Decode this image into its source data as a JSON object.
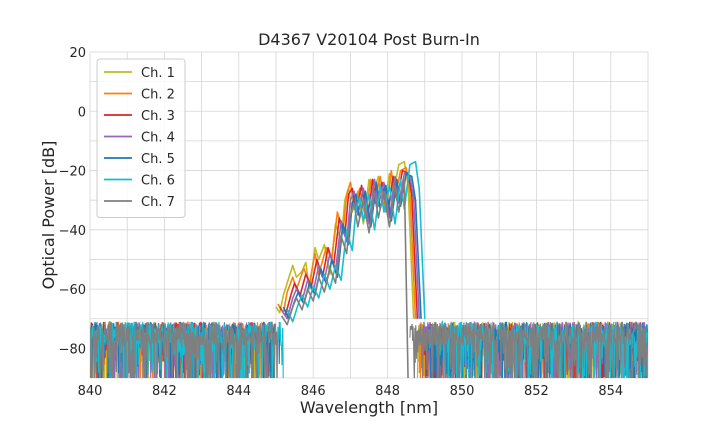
{
  "chart_data": {
    "type": "line",
    "title": "D4367 V20104 Post Burn-In",
    "xlabel": "Wavelength [nm]",
    "ylabel": "Optical Power [dB]",
    "xlim": [
      840,
      855
    ],
    "ylim": [
      -90,
      20
    ],
    "x_ticks": [
      840,
      842,
      844,
      846,
      848,
      850,
      852,
      854
    ],
    "y_ticks": [
      -80,
      -60,
      -40,
      -20,
      0,
      20
    ],
    "grid": true,
    "legend_position": "top-left",
    "noise_floor_db": -75,
    "series": [
      {
        "name": "Ch. 1",
        "color": "#bcbd22",
        "points": [
          [
            840,
            -75
          ],
          [
            844.9,
            -75
          ],
          [
            845.0,
            -66
          ],
          [
            845.1,
            -68
          ],
          [
            845.2,
            -62
          ],
          [
            845.3,
            -58
          ],
          [
            845.45,
            -52
          ],
          [
            845.55,
            -56
          ],
          [
            845.7,
            -54
          ],
          [
            845.8,
            -51
          ],
          [
            845.9,
            -60
          ],
          [
            846.05,
            -46
          ],
          [
            846.15,
            -50
          ],
          [
            846.3,
            -45
          ],
          [
            846.45,
            -55
          ],
          [
            846.6,
            -38
          ],
          [
            846.75,
            -44
          ],
          [
            846.85,
            -30
          ],
          [
            846.95,
            -26
          ],
          [
            847.05,
            -34
          ],
          [
            847.2,
            -27
          ],
          [
            847.35,
            -38
          ],
          [
            847.5,
            -23
          ],
          [
            847.6,
            -29
          ],
          [
            847.75,
            -22
          ],
          [
            847.9,
            -33
          ],
          [
            848.05,
            -21
          ],
          [
            848.15,
            -28
          ],
          [
            848.3,
            -18
          ],
          [
            848.45,
            -17
          ],
          [
            848.55,
            -25
          ],
          [
            848.7,
            -70
          ],
          [
            848.8,
            -75
          ],
          [
            855,
            -75
          ]
        ]
      },
      {
        "name": "Ch. 2",
        "color": "#ff7f0e",
        "points": [
          [
            840,
            -75
          ],
          [
            844.95,
            -75
          ],
          [
            845.05,
            -65
          ],
          [
            845.2,
            -68
          ],
          [
            845.3,
            -61
          ],
          [
            845.45,
            -56
          ],
          [
            845.55,
            -60
          ],
          [
            845.75,
            -53
          ],
          [
            845.9,
            -58
          ],
          [
            846.05,
            -48
          ],
          [
            846.15,
            -55
          ],
          [
            846.35,
            -46
          ],
          [
            846.5,
            -50
          ],
          [
            846.65,
            -34
          ],
          [
            846.8,
            -41
          ],
          [
            846.9,
            -28
          ],
          [
            847.0,
            -24
          ],
          [
            847.1,
            -33
          ],
          [
            847.25,
            -26
          ],
          [
            847.4,
            -36
          ],
          [
            847.55,
            -23
          ],
          [
            847.65,
            -31
          ],
          [
            847.8,
            -22
          ],
          [
            847.95,
            -34
          ],
          [
            848.1,
            -20
          ],
          [
            848.2,
            -29
          ],
          [
            848.35,
            -20
          ],
          [
            848.5,
            -19
          ],
          [
            848.6,
            -27
          ],
          [
            848.75,
            -70
          ],
          [
            848.85,
            -75
          ],
          [
            855,
            -75
          ]
        ]
      },
      {
        "name": "Ch. 3",
        "color": "#d62728",
        "points": [
          [
            840,
            -75
          ],
          [
            845.0,
            -75
          ],
          [
            845.1,
            -66
          ],
          [
            845.25,
            -69
          ],
          [
            845.4,
            -62
          ],
          [
            845.5,
            -58
          ],
          [
            845.65,
            -62
          ],
          [
            845.8,
            -55
          ],
          [
            845.95,
            -59
          ],
          [
            846.1,
            -50
          ],
          [
            846.25,
            -56
          ],
          [
            846.4,
            -46
          ],
          [
            846.55,
            -52
          ],
          [
            846.7,
            -36
          ],
          [
            846.85,
            -42
          ],
          [
            846.95,
            -28
          ],
          [
            847.05,
            -26
          ],
          [
            847.15,
            -34
          ],
          [
            847.3,
            -25
          ],
          [
            847.45,
            -37
          ],
          [
            847.6,
            -23
          ],
          [
            847.7,
            -32
          ],
          [
            847.85,
            -24
          ],
          [
            848.0,
            -35
          ],
          [
            848.15,
            -22
          ],
          [
            848.25,
            -30
          ],
          [
            848.4,
            -20
          ],
          [
            848.55,
            -21
          ],
          [
            848.65,
            -28
          ],
          [
            848.8,
            -70
          ],
          [
            848.9,
            -75
          ],
          [
            855,
            -75
          ]
        ]
      },
      {
        "name": "Ch. 4",
        "color": "#9467bd",
        "points": [
          [
            840,
            -75
          ],
          [
            845.05,
            -75
          ],
          [
            845.15,
            -67
          ],
          [
            845.3,
            -70
          ],
          [
            845.45,
            -63
          ],
          [
            845.55,
            -60
          ],
          [
            845.7,
            -64
          ],
          [
            845.85,
            -57
          ],
          [
            846.0,
            -61
          ],
          [
            846.15,
            -52
          ],
          [
            846.3,
            -57
          ],
          [
            846.45,
            -48
          ],
          [
            846.6,
            -54
          ],
          [
            846.75,
            -37
          ],
          [
            846.9,
            -44
          ],
          [
            847.0,
            -30
          ],
          [
            847.1,
            -27
          ],
          [
            847.2,
            -35
          ],
          [
            847.35,
            -26
          ],
          [
            847.5,
            -38
          ],
          [
            847.65,
            -23
          ],
          [
            847.75,
            -32
          ],
          [
            847.9,
            -24
          ],
          [
            848.05,
            -36
          ],
          [
            848.2,
            -22
          ],
          [
            848.3,
            -31
          ],
          [
            848.45,
            -21
          ],
          [
            848.6,
            -22
          ],
          [
            848.7,
            -29
          ],
          [
            848.85,
            -70
          ],
          [
            848.95,
            -75
          ],
          [
            855,
            -75
          ]
        ]
      },
      {
        "name": "Ch. 5",
        "color": "#1f77b4",
        "points": [
          [
            840,
            -75
          ],
          [
            845.1,
            -75
          ],
          [
            845.2,
            -66
          ],
          [
            845.35,
            -70
          ],
          [
            845.5,
            -64
          ],
          [
            845.6,
            -61
          ],
          [
            845.75,
            -65
          ],
          [
            845.9,
            -58
          ],
          [
            846.05,
            -62
          ],
          [
            846.2,
            -53
          ],
          [
            846.35,
            -58
          ],
          [
            846.5,
            -50
          ],
          [
            846.65,
            -56
          ],
          [
            846.8,
            -38
          ],
          [
            846.95,
            -45
          ],
          [
            847.05,
            -31
          ],
          [
            847.15,
            -28
          ],
          [
            847.25,
            -36
          ],
          [
            847.4,
            -27
          ],
          [
            847.55,
            -39
          ],
          [
            847.7,
            -24
          ],
          [
            847.8,
            -33
          ],
          [
            847.95,
            -25
          ],
          [
            848.1,
            -37
          ],
          [
            848.25,
            -23
          ],
          [
            848.35,
            -32
          ],
          [
            848.5,
            -21
          ],
          [
            848.65,
            -22
          ],
          [
            848.75,
            -30
          ],
          [
            848.9,
            -70
          ],
          [
            849.0,
            -75
          ],
          [
            855,
            -75
          ]
        ]
      },
      {
        "name": "Ch. 6",
        "color": "#17becf",
        "points": [
          [
            840,
            -75
          ],
          [
            845.2,
            -75
          ],
          [
            845.3,
            -67
          ],
          [
            845.45,
            -71
          ],
          [
            845.6,
            -65
          ],
          [
            845.7,
            -62
          ],
          [
            845.85,
            -66
          ],
          [
            846.0,
            -59
          ],
          [
            846.15,
            -63
          ],
          [
            846.3,
            -55
          ],
          [
            846.45,
            -60
          ],
          [
            846.6,
            -52
          ],
          [
            846.75,
            -57
          ],
          [
            846.9,
            -40
          ],
          [
            847.05,
            -47
          ],
          [
            847.15,
            -33
          ],
          [
            847.25,
            -29
          ],
          [
            847.35,
            -37
          ],
          [
            847.5,
            -28
          ],
          [
            847.65,
            -40
          ],
          [
            847.8,
            -25
          ],
          [
            847.9,
            -34
          ],
          [
            848.05,
            -25
          ],
          [
            848.2,
            -38
          ],
          [
            848.35,
            -23
          ],
          [
            848.45,
            -33
          ],
          [
            848.6,
            -18
          ],
          [
            848.75,
            -17
          ],
          [
            848.85,
            -26
          ],
          [
            849.0,
            -70
          ],
          [
            849.1,
            -75
          ],
          [
            855,
            -75
          ]
        ]
      },
      {
        "name": "Ch. 7",
        "color": "#7f7f7f",
        "points": [
          [
            840,
            -75
          ],
          [
            845.05,
            -75
          ],
          [
            845.15,
            -69
          ],
          [
            845.3,
            -72
          ],
          [
            845.45,
            -66
          ],
          [
            845.55,
            -63
          ],
          [
            845.7,
            -67
          ],
          [
            845.85,
            -60
          ],
          [
            846.0,
            -64
          ],
          [
            846.15,
            -56
          ],
          [
            846.3,
            -61
          ],
          [
            846.45,
            -53
          ],
          [
            846.6,
            -58
          ],
          [
            846.75,
            -42
          ],
          [
            846.9,
            -48
          ],
          [
            847.0,
            -35
          ],
          [
            847.1,
            -31
          ],
          [
            847.2,
            -39
          ],
          [
            847.35,
            -30
          ],
          [
            847.5,
            -41
          ],
          [
            847.65,
            -27
          ],
          [
            847.75,
            -36
          ],
          [
            847.9,
            -27
          ],
          [
            848.05,
            -39
          ],
          [
            848.2,
            -25
          ],
          [
            848.3,
            -34
          ],
          [
            848.45,
            -23
          ],
          [
            848.55,
            -90
          ],
          [
            848.6,
            -75
          ],
          [
            855,
            -75
          ]
        ]
      }
    ]
  }
}
